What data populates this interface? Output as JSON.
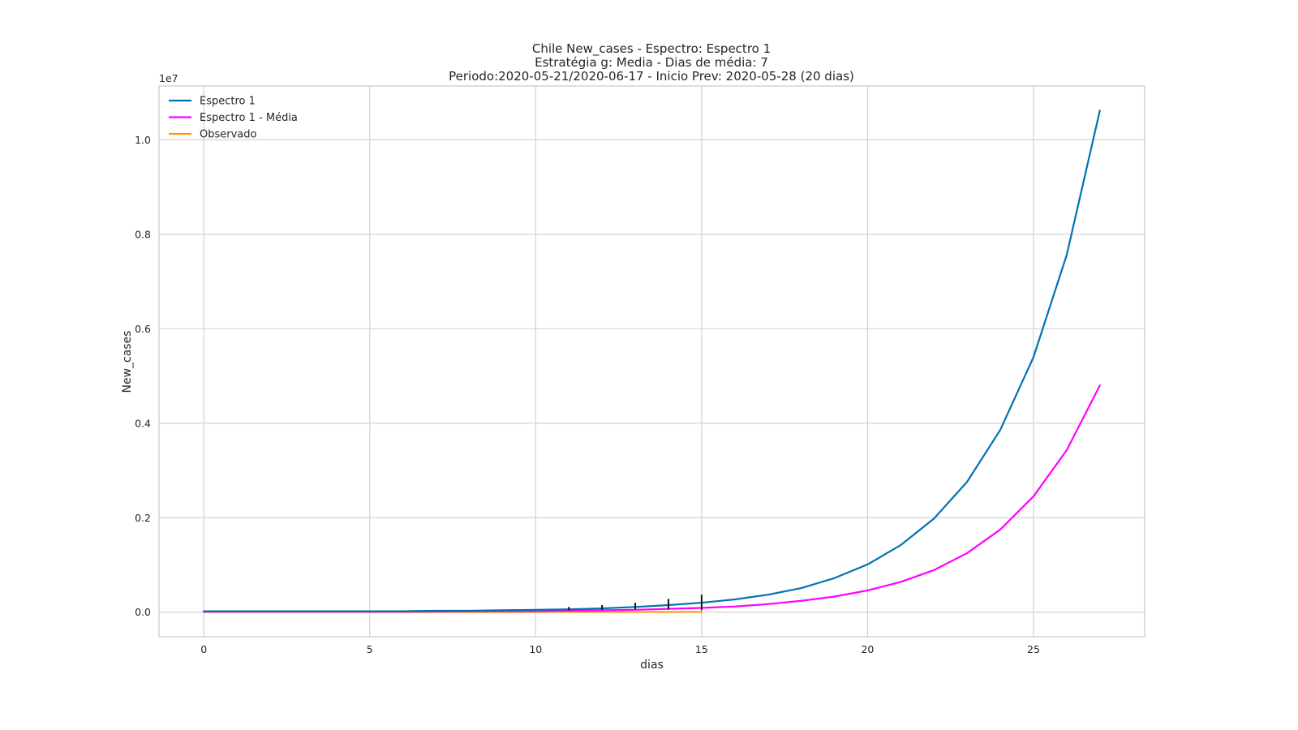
{
  "chart_data": {
    "type": "line",
    "title": [
      "Chile New_cases - Espectro: Espectro 1",
      "Estratégia g: Media - Dias de média: 7",
      "Periodo:2020-05-21/2020-06-17 - Inicio Prev: 2020-05-28 (20 dias)"
    ],
    "xlabel": "dias",
    "ylabel": "New_cases",
    "y_offset_label": "1e7",
    "y_scale_factor": 10000000,
    "xlim": [
      -1.35,
      28.35
    ],
    "ylim": [
      -0.052,
      1.114
    ],
    "x_ticks": [
      0,
      5,
      10,
      15,
      20,
      25
    ],
    "x_tick_labels": [
      "0",
      "5",
      "10",
      "15",
      "20",
      "25"
    ],
    "y_ticks": [
      0.0,
      0.2,
      0.4,
      0.6,
      0.8,
      1.0
    ],
    "y_tick_labels": [
      "0.0",
      "0.2",
      "0.4",
      "0.6",
      "0.8",
      "1.0"
    ],
    "grid": true,
    "legend_position": "top-left",
    "series": [
      {
        "name": "Espectro 1",
        "color": "#0072b2",
        "x": [
          0,
          1,
          2,
          3,
          4,
          5,
          6,
          7,
          8,
          9,
          10,
          11,
          12,
          13,
          14,
          15,
          16,
          17,
          18,
          19,
          20,
          21,
          22,
          23,
          24,
          25,
          26,
          27
        ],
        "y": [
          0.002,
          0.002,
          0.002,
          0.002,
          0.002,
          0.002,
          0.002,
          0.003,
          0.003,
          0.004,
          0.005,
          0.006,
          0.008,
          0.011,
          0.015,
          0.02,
          0.027,
          0.037,
          0.051,
          0.072,
          0.101,
          0.142,
          0.198,
          0.276,
          0.386,
          0.54,
          0.756,
          1.062
        ]
      },
      {
        "name": "Espectro 1 - Média",
        "color": "#ff00ff",
        "x": [
          0,
          1,
          2,
          3,
          4,
          5,
          6,
          7,
          8,
          9,
          10,
          11,
          12,
          13,
          14,
          15,
          16,
          17,
          18,
          19,
          20,
          21,
          22,
          23,
          24,
          25,
          26,
          27
        ],
        "y": [
          0.001,
          0.001,
          0.001,
          0.001,
          0.001,
          0.001,
          0.001,
          0.0015,
          0.002,
          0.002,
          0.002,
          0.003,
          0.004,
          0.005,
          0.007,
          0.009,
          0.012,
          0.017,
          0.024,
          0.033,
          0.046,
          0.064,
          0.089,
          0.125,
          0.175,
          0.245,
          0.343,
          0.48
        ]
      },
      {
        "name": "Observado",
        "color": "#ff9500",
        "x": [
          0,
          1,
          2,
          3,
          4,
          5,
          6,
          7,
          8,
          9,
          10,
          11,
          12,
          13,
          14,
          15
        ],
        "y": [
          0.0004,
          0.0004,
          0.0004,
          0.0004,
          0.0004,
          0.0004,
          0.0004,
          0.0004,
          0.0004,
          0.0004,
          0.0005,
          0.0005,
          0.0005,
          0.0005,
          0.0005,
          0.0005
        ]
      }
    ],
    "error_bars": {
      "color": "#111111",
      "x": [
        11,
        12,
        13,
        14,
        15
      ],
      "lower": [
        0.004,
        0.005,
        0.006,
        0.006,
        0.004
      ],
      "upper": [
        0.011,
        0.015,
        0.02,
        0.028,
        0.037
      ]
    }
  }
}
